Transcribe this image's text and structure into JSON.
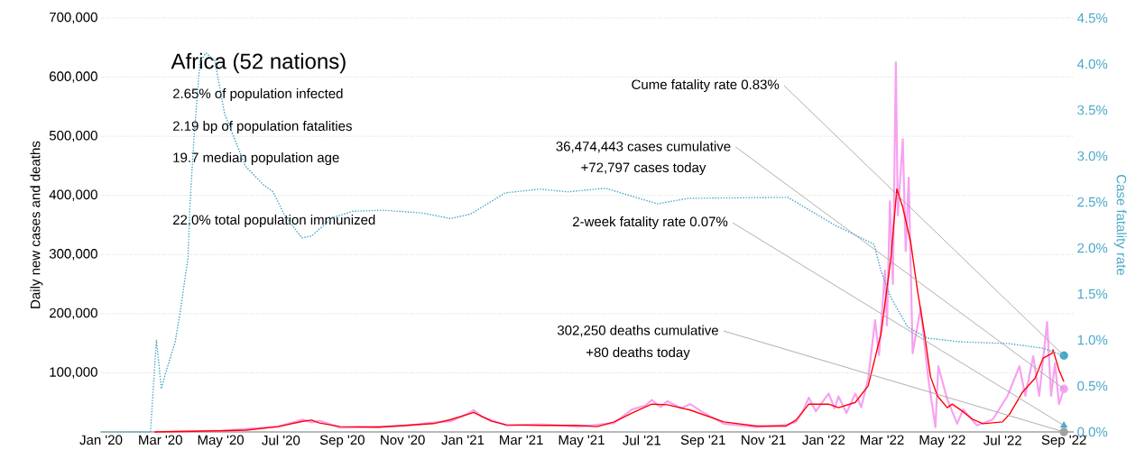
{
  "chart_data": {
    "type": "line",
    "title": "Africa (52 nations)",
    "ylabel": "Daily new cases and deaths",
    "y2label": "Case fatality rate",
    "annotations": [
      "2.65% of population infected",
      "2.19 bp of population fatalities",
      "19.7 median population age",
      "22.0% total population immunized",
      {
        "text": "Cume fatality rate 0.83%",
        "x": "2022-09-01",
        "y": 129000
      },
      {
        "text": "36,474,443 cases cumulative",
        "x": "2022-09-01",
        "y": 72797
      },
      "+72,797 cases today",
      {
        "text": "2-week fatality rate 0.07%",
        "x": "2022-09-01",
        "y": 0.07
      },
      {
        "text": "302,250 deaths cumulative",
        "x": "2022-09-01",
        "y": 80
      },
      "+80 deaths today"
    ],
    "xlim": [
      "2020-01-01",
      "2022-09-11"
    ],
    "xticks": [
      {
        "value": "2020-01-01",
        "label": "Jan '20"
      },
      {
        "value": "2020-03-01",
        "label": "Mar '20"
      },
      {
        "value": "2020-05-01",
        "label": "May '20"
      },
      {
        "value": "2020-07-01",
        "label": "Jul '20"
      },
      {
        "value": "2020-09-01",
        "label": "Sep '20"
      },
      {
        "value": "2020-11-01",
        "label": "Nov '20"
      },
      {
        "value": "2021-01-01",
        "label": "Jan '21"
      },
      {
        "value": "2021-03-01",
        "label": "Mar '21"
      },
      {
        "value": "2021-05-01",
        "label": "May '21"
      },
      {
        "value": "2021-07-01",
        "label": "Jul '21"
      },
      {
        "value": "2021-09-01",
        "label": "Sep '21"
      },
      {
        "value": "2021-11-01",
        "label": "Nov '21"
      },
      {
        "value": "2022-01-01",
        "label": "Jan '22"
      },
      {
        "value": "2022-03-01",
        "label": "Mar '22"
      },
      {
        "value": "2022-05-01",
        "label": "May '22"
      },
      {
        "value": "2022-07-01",
        "label": "Jul '22"
      },
      {
        "value": "2022-09-01",
        "label": "Sep '22"
      }
    ],
    "ylim": [
      0,
      700000
    ],
    "yticks": [
      {
        "value": 100000,
        "label": "100,000"
      },
      {
        "value": 200000,
        "label": "200,000"
      },
      {
        "value": 300000,
        "label": "300,000"
      },
      {
        "value": 400000,
        "label": "400,000"
      },
      {
        "value": 500000,
        "label": "500,000"
      },
      {
        "value": 600000,
        "label": "600,000"
      },
      {
        "value": 700000,
        "label": "700,000"
      }
    ],
    "y2lim": [
      0,
      4.5
    ],
    "y2ticks": [
      {
        "value": 0,
        "label": "0.0%"
      },
      {
        "value": 0.5,
        "label": "0.5%"
      },
      {
        "value": 1,
        "label": "1.0%"
      },
      {
        "value": 1.5,
        "label": "1.5%"
      },
      {
        "value": 2,
        "label": "2.0%"
      },
      {
        "value": 2.5,
        "label": "2.5%"
      },
      {
        "value": 3,
        "label": "3.0%"
      },
      {
        "value": 3.5,
        "label": "3.5%"
      },
      {
        "value": 4,
        "label": "4.0%"
      },
      {
        "value": 4.5,
        "label": "4.5%"
      }
    ],
    "grid": "y",
    "series": [
      {
        "color": "#f7a1f0",
        "x": [
          "2020-02-24",
          "2020-05-02",
          "2020-06-28",
          "2020-07-23",
          "2020-08-01",
          "2020-08-09",
          "2020-08-30",
          "2020-10-08",
          "2020-11-03",
          "2020-12-02",
          "2020-12-20",
          "2021-01-05",
          "2021-01-12",
          "2021-01-20",
          "2021-02-14",
          "2021-03-22",
          "2021-04-27",
          "2021-05-17",
          "2021-06-03",
          "2021-06-21",
          "2021-07-05",
          "2021-07-11",
          "2021-07-20",
          "2021-07-27",
          "2021-08-10",
          "2021-08-19",
          "2021-09-01",
          "2021-09-22",
          "2021-10-25",
          "2021-11-24",
          "2021-12-04",
          "2021-12-10",
          "2021-12-17",
          "2021-12-24",
          "2022-01-06",
          "2022-01-12",
          "2022-01-16",
          "2022-01-24",
          "2022-02-02",
          "2022-02-08",
          "2022-02-15",
          "2022-02-22",
          "2022-02-26",
          "2022-03-04",
          "2022-03-06",
          "2022-03-09",
          "2022-03-12",
          "2022-03-15",
          "2022-03-17",
          "2022-03-22",
          "2022-03-25",
          "2022-03-28",
          "2022-04-01",
          "2022-04-09",
          "2022-04-17",
          "2022-04-24",
          "2022-04-27",
          "2022-05-06",
          "2022-05-16",
          "2022-05-22",
          "2022-06-05",
          "2022-06-21",
          "2022-07-06",
          "2022-07-18",
          "2022-07-24",
          "2022-08-01",
          "2022-08-07",
          "2022-08-15",
          "2022-08-19",
          "2022-08-23",
          "2022-08-27",
          "2022-09-01"
        ],
        "values": [
          0,
          2000,
          9000,
          21000,
          16000,
          19000,
          7000,
          9000,
          10000,
          16000,
          18000,
          30000,
          37000,
          26000,
          11000,
          13000,
          9000,
          12000,
          15000,
          38000,
          45000,
          54000,
          42000,
          52000,
          40000,
          47000,
          33000,
          14000,
          8000,
          12000,
          17000,
          32000,
          58000,
          35000,
          65000,
          40000,
          60000,
          32000,
          65000,
          42000,
          90000,
          189000,
          130000,
          273000,
          180000,
          390000,
          250000,
          625000,
          366000,
          495000,
          306000,
          430000,
          133000,
          210000,
          88000,
          8000,
          111000,
          55000,
          14000,
          38000,
          11000,
          21000,
          61000,
          111000,
          61000,
          128000,
          61000,
          186000,
          61000,
          116000,
          47000,
          72797
        ]
      },
      {
        "color": "#ff0000",
        "x": [
          "2020-02-24",
          "2020-05-02",
          "2020-05-27",
          "2020-06-28",
          "2020-07-23",
          "2020-08-01",
          "2020-08-09",
          "2020-08-30",
          "2020-10-08",
          "2020-11-03",
          "2020-12-02",
          "2020-12-20",
          "2021-01-12",
          "2021-01-30",
          "2021-02-14",
          "2021-03-22",
          "2021-04-27",
          "2021-05-17",
          "2021-06-03",
          "2021-06-21",
          "2021-07-11",
          "2021-07-27",
          "2021-08-19",
          "2021-09-22",
          "2021-10-25",
          "2021-11-24",
          "2021-12-04",
          "2021-12-17",
          "2022-01-06",
          "2022-01-16",
          "2022-02-02",
          "2022-02-15",
          "2022-02-28",
          "2022-03-10",
          "2022-03-16",
          "2022-03-22",
          "2022-03-30",
          "2022-04-06",
          "2022-04-13",
          "2022-04-19",
          "2022-04-26",
          "2022-05-06",
          "2022-05-11",
          "2022-05-19",
          "2022-06-01",
          "2022-06-11",
          "2022-07-01",
          "2022-07-08",
          "2022-07-21",
          "2022-08-03",
          "2022-08-11",
          "2022-08-20",
          "2022-08-21",
          "2022-08-27",
          "2022-09-01"
        ],
        "values": [
          0,
          2000,
          3000,
          9000,
          18000,
          20000,
          15000,
          9000,
          8000,
          11000,
          14000,
          21000,
          33000,
          18000,
          12000,
          11000,
          11000,
          9000,
          17000,
          32000,
          47000,
          46000,
          37000,
          17000,
          10000,
          10000,
          20000,
          47000,
          47000,
          41000,
          50000,
          78000,
          166000,
          294000,
          411000,
          380000,
          321000,
          238000,
          166000,
          94000,
          61000,
          41000,
          47000,
          38000,
          21000,
          14000,
          17000,
          30000,
          67000,
          91000,
          125000,
          133000,
          139000,
          105000,
          85000
        ]
      },
      {
        "axis": "y2",
        "line_style": "dotted",
        "color": "#4aa8c8",
        "x": [
          "2020-01-01",
          "2020-02-20",
          "2020-02-26",
          "2020-03-02",
          "2020-03-06",
          "2020-03-16",
          "2020-03-21",
          "2020-03-29",
          "2020-03-31",
          "2020-04-04",
          "2020-04-10",
          "2020-04-16",
          "2020-04-25",
          "2020-05-05",
          "2020-05-16",
          "2020-05-26",
          "2020-06-13",
          "2020-06-23",
          "2020-07-04",
          "2020-07-22",
          "2020-08-01",
          "2020-08-22",
          "2020-09-12",
          "2020-10-14",
          "2020-11-21",
          "2020-12-20",
          "2021-01-09",
          "2021-02-13",
          "2021-03-20",
          "2021-04-17",
          "2021-05-25",
          "2021-07-17",
          "2021-08-17",
          "2021-11-26",
          "2022-01-12",
          "2022-02-21",
          "2022-02-28",
          "2022-03-10",
          "2022-03-27",
          "2022-04-16",
          "2022-05-19",
          "2022-07-08",
          "2022-08-11",
          "2022-09-01"
        ],
        "values": [
          0,
          0,
          1.0,
          0.47,
          0.63,
          0.98,
          1.3,
          1.9,
          2.48,
          3.2,
          4.02,
          4.12,
          4.04,
          3.46,
          3.16,
          2.89,
          2.69,
          2.61,
          2.37,
          2.11,
          2.13,
          2.33,
          2.4,
          2.41,
          2.38,
          2.32,
          2.37,
          2.6,
          2.64,
          2.61,
          2.65,
          2.48,
          2.54,
          2.55,
          2.25,
          2.04,
          1.75,
          1.46,
          1.14,
          1.02,
          0.98,
          0.96,
          0.91,
          0.83
        ]
      },
      {
        "type": "scatter",
        "axis": "y2",
        "marker": "circle",
        "color": "#4aa8c8",
        "x": [
          "2022-09-01"
        ],
        "values": [
          0.83
        ]
      },
      {
        "type": "scatter",
        "marker": "circle",
        "color": "#f7a1f0",
        "x": [
          "2022-09-01"
        ],
        "values": [
          72797
        ]
      },
      {
        "type": "scatter",
        "axis": "y2",
        "marker": "triangle",
        "color": "#4aa8c8",
        "x": [
          "2022-09-01"
        ],
        "values": [
          0.07
        ]
      },
      {
        "type": "scatter",
        "marker": "circle",
        "color": "#a0a0a0",
        "x": [
          "2022-09-01"
        ],
        "values": [
          80
        ]
      }
    ]
  }
}
